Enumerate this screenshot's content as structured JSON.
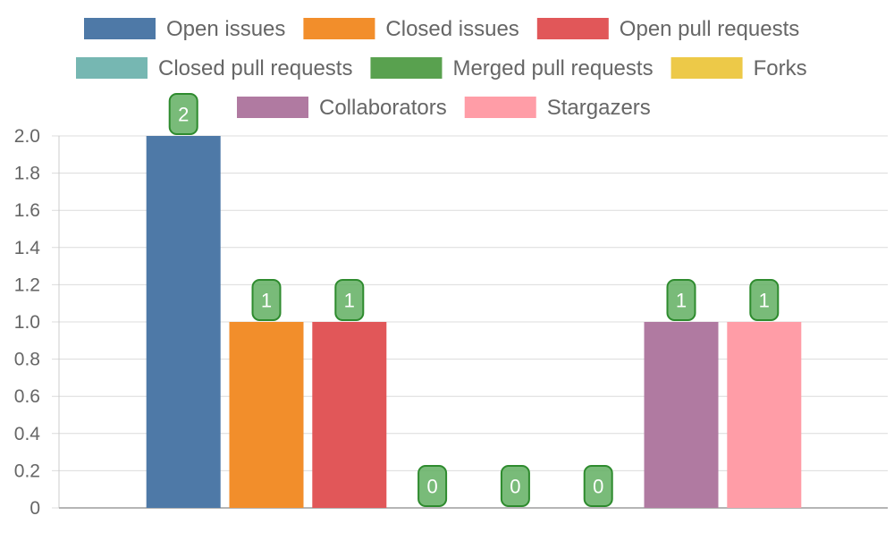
{
  "chart_data": {
    "type": "bar",
    "ylim": [
      0,
      2
    ],
    "yticks": [
      "0",
      "0.2",
      "0.4",
      "0.6",
      "0.8",
      "1.0",
      "1.2",
      "1.4",
      "1.6",
      "1.8",
      "2.0"
    ],
    "grid": true,
    "legend_position": "top",
    "series": [
      {
        "name": "Open issues",
        "value": 2,
        "color": "#4e79a7"
      },
      {
        "name": "Closed issues",
        "value": 1,
        "color": "#f28e2b"
      },
      {
        "name": "Open pull requests",
        "value": 1,
        "color": "#e15759"
      },
      {
        "name": "Closed pull requests",
        "value": 0,
        "color": "#76b7b2"
      },
      {
        "name": "Merged pull requests",
        "value": 0,
        "color": "#59a14f"
      },
      {
        "name": "Forks",
        "value": 0,
        "color": "#edc948"
      },
      {
        "name": "Collaborators",
        "value": 1,
        "color": "#b07aa1"
      },
      {
        "name": "Stargazers",
        "value": 1,
        "color": "#ff9da7"
      }
    ],
    "data_labels": [
      "2",
      "1",
      "1",
      "0",
      "0",
      "0",
      "1",
      "1"
    ],
    "data_label_color": "#6ab46a"
  }
}
